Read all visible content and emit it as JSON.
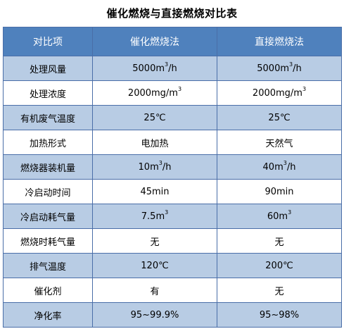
{
  "title": "催化燃烧与直接燃烧对比表",
  "headers": [
    "对比项",
    "催化燃烧法",
    "直接燃烧法"
  ],
  "rows": [
    {
      "item": "处理风量",
      "catalytic": {
        "text": "5000m",
        "sup": "3",
        "tail": "/h"
      },
      "direct": {
        "text": "5000m",
        "sup": "3",
        "tail": "/h"
      }
    },
    {
      "item": "处理浓度",
      "catalytic": {
        "text": "2000mg/m",
        "sup": "3",
        "tail": ""
      },
      "direct": {
        "text": "2000mg/m",
        "sup": "3",
        "tail": ""
      }
    },
    {
      "item": "有机废气温度",
      "catalytic": {
        "text": "25℃",
        "sup": "",
        "tail": ""
      },
      "direct": {
        "text": "25℃",
        "sup": "",
        "tail": ""
      }
    },
    {
      "item": "加热形式",
      "catalytic": {
        "text": "电加热",
        "sup": "",
        "tail": ""
      },
      "direct": {
        "text": "天然气",
        "sup": "",
        "tail": ""
      }
    },
    {
      "item": "燃烧器装机量",
      "catalytic": {
        "text": "10m",
        "sup": "3",
        "tail": "/h"
      },
      "direct": {
        "text": "40m",
        "sup": "3",
        "tail": "/h"
      }
    },
    {
      "item": "冷启动时间",
      "catalytic": {
        "text": "45min",
        "sup": "",
        "tail": ""
      },
      "direct": {
        "text": "90min",
        "sup": "",
        "tail": ""
      }
    },
    {
      "item": "冷启动耗气量",
      "catalytic": {
        "text": "7.5m",
        "sup": "3",
        "tail": ""
      },
      "direct": {
        "text": "60m",
        "sup": "3",
        "tail": ""
      }
    },
    {
      "item": "燃烧时耗气量",
      "catalytic": {
        "text": "无",
        "sup": "",
        "tail": ""
      },
      "direct": {
        "text": "无",
        "sup": "",
        "tail": ""
      }
    },
    {
      "item": "排气温度",
      "catalytic": {
        "text": "120℃",
        "sup": "",
        "tail": ""
      },
      "direct": {
        "text": "200℃",
        "sup": "",
        "tail": ""
      }
    },
    {
      "item": "催化剂",
      "catalytic": {
        "text": "有",
        "sup": "",
        "tail": ""
      },
      "direct": {
        "text": "无",
        "sup": "",
        "tail": ""
      }
    },
    {
      "item": "净化率",
      "catalytic": {
        "text": "95~99.9%",
        "sup": "",
        "tail": ""
      },
      "direct": {
        "text": "95~98%",
        "sup": "",
        "tail": ""
      }
    }
  ]
}
